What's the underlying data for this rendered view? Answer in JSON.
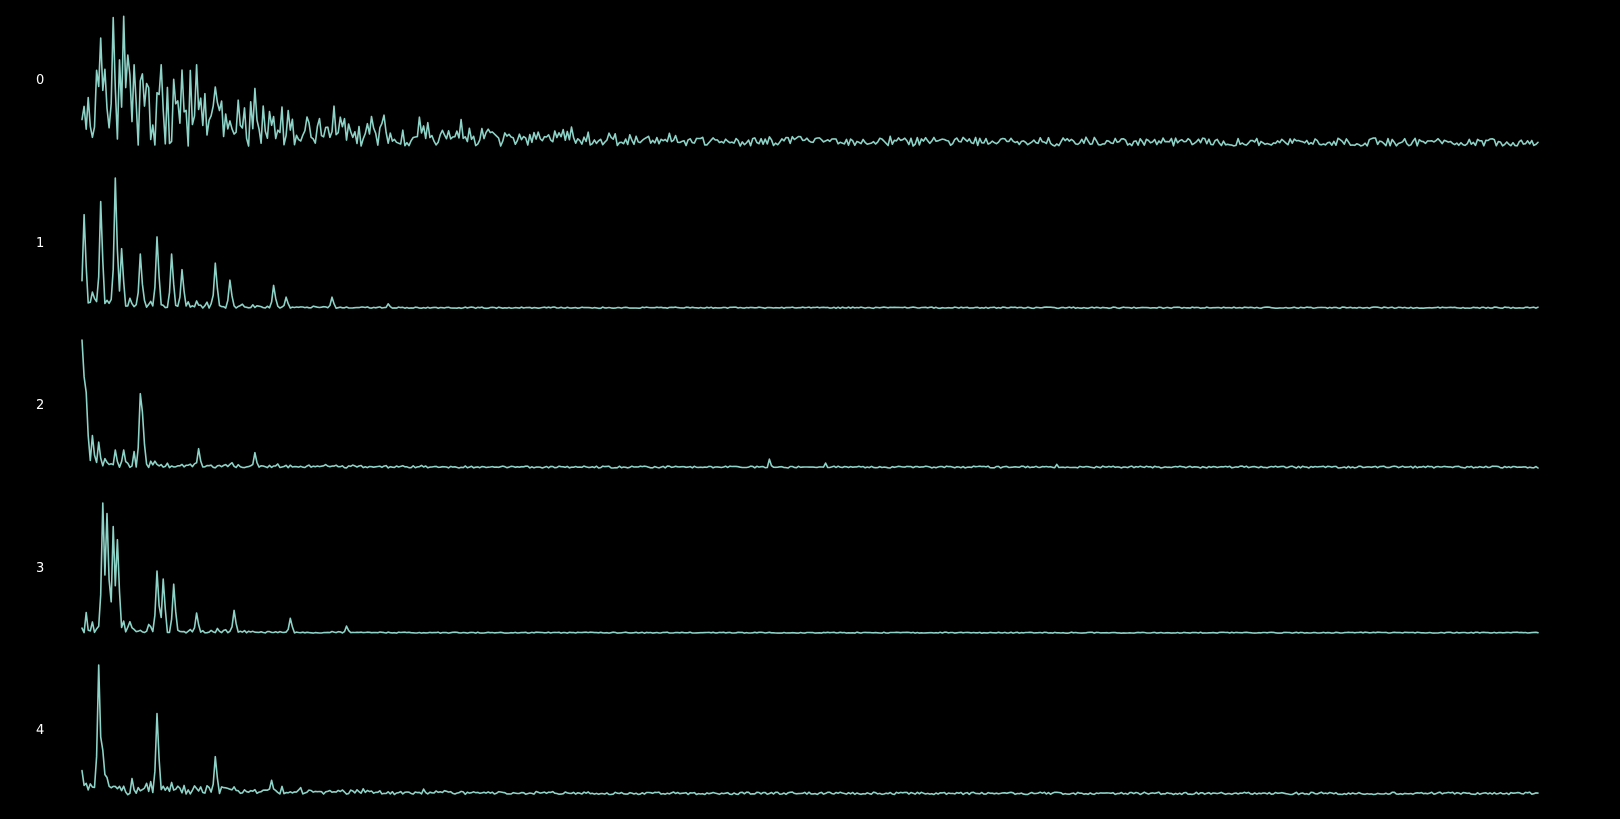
{
  "chart_data": {
    "type": "line",
    "title": "",
    "xlabel": "",
    "ylabel": "",
    "axes_visible": false,
    "grid": false,
    "legend": "none",
    "line_color": "#8dd3c7",
    "background_color": "#000000",
    "label_color": "#ffffff",
    "panels": [
      {
        "label": "0",
        "ylim": [
          0,
          1
        ],
        "noise_floor": 0.03,
        "noise_amplitude": 0.05,
        "envelope": {
          "amplitude": 0.5,
          "decay": 0.14
        },
        "peaks": [
          {
            "x": 0.013,
            "y": 0.58
          },
          {
            "x": 0.022,
            "y": 0.98
          },
          {
            "x": 0.029,
            "y": 0.99
          },
          {
            "x": 0.036,
            "y": 0.62
          },
          {
            "x": 0.041,
            "y": 0.55
          },
          {
            "x": 0.054,
            "y": 0.62
          },
          {
            "x": 0.068,
            "y": 0.58
          },
          {
            "x": 0.078,
            "y": 0.62
          },
          {
            "x": 0.091,
            "y": 0.45
          },
          {
            "x": 0.107,
            "y": 0.35
          },
          {
            "x": 0.119,
            "y": 0.44
          },
          {
            "x": 0.142,
            "y": 0.27
          },
          {
            "x": 0.232,
            "y": 0.22
          },
          {
            "x": 0.248,
            "y": 0.12
          },
          {
            "x": 0.29,
            "y": 0.1
          }
        ]
      },
      {
        "label": "1",
        "ylim": [
          0,
          1
        ],
        "noise_floor": 0.01,
        "noise_amplitude": 0.008,
        "envelope": {
          "amplitude": 0.14,
          "decay": 0.05
        },
        "peaks": [
          {
            "x": 0.001,
            "y": 0.72
          },
          {
            "x": 0.013,
            "y": 0.82
          },
          {
            "x": 0.023,
            "y": 1.0
          },
          {
            "x": 0.027,
            "y": 0.46
          },
          {
            "x": 0.04,
            "y": 0.42
          },
          {
            "x": 0.052,
            "y": 0.55
          },
          {
            "x": 0.062,
            "y": 0.42
          },
          {
            "x": 0.069,
            "y": 0.3
          },
          {
            "x": 0.091,
            "y": 0.35
          },
          {
            "x": 0.101,
            "y": 0.22
          },
          {
            "x": 0.131,
            "y": 0.18
          },
          {
            "x": 0.14,
            "y": 0.09
          },
          {
            "x": 0.171,
            "y": 0.09
          },
          {
            "x": 0.211,
            "y": 0.04
          }
        ]
      },
      {
        "label": "2",
        "ylim": [
          0,
          1
        ],
        "noise_floor": 0.03,
        "noise_amplitude": 0.012,
        "envelope": {
          "amplitude": 0.09,
          "decay": 0.07
        },
        "peaks": [
          {
            "x": 0.0,
            "y": 1.0
          },
          {
            "x": 0.002,
            "y": 0.72
          },
          {
            "x": 0.003,
            "y": 0.6
          },
          {
            "x": 0.007,
            "y": 0.27
          },
          {
            "x": 0.012,
            "y": 0.22
          },
          {
            "x": 0.023,
            "y": 0.16
          },
          {
            "x": 0.029,
            "y": 0.16
          },
          {
            "x": 0.04,
            "y": 0.59
          },
          {
            "x": 0.041,
            "y": 0.45
          },
          {
            "x": 0.042,
            "y": 0.42
          },
          {
            "x": 0.08,
            "y": 0.17
          },
          {
            "x": 0.119,
            "y": 0.14
          },
          {
            "x": 0.472,
            "y": 0.09
          },
          {
            "x": 0.511,
            "y": 0.06
          },
          {
            "x": 0.669,
            "y": 0.05
          }
        ]
      },
      {
        "label": "3",
        "ylim": [
          0,
          1
        ],
        "noise_floor": 0.01,
        "noise_amplitude": 0.006,
        "envelope": {
          "amplitude": 0.1,
          "decay": 0.05
        },
        "peaks": [
          {
            "x": 0.014,
            "y": 1.0
          },
          {
            "x": 0.017,
            "y": 0.92
          },
          {
            "x": 0.021,
            "y": 0.82
          },
          {
            "x": 0.025,
            "y": 0.72
          },
          {
            "x": 0.051,
            "y": 0.48
          },
          {
            "x": 0.056,
            "y": 0.42
          },
          {
            "x": 0.063,
            "y": 0.38
          },
          {
            "x": 0.078,
            "y": 0.16
          },
          {
            "x": 0.104,
            "y": 0.18
          },
          {
            "x": 0.143,
            "y": 0.12
          },
          {
            "x": 0.182,
            "y": 0.06
          }
        ]
      },
      {
        "label": "4",
        "ylim": [
          0,
          1
        ],
        "noise_floor": 0.02,
        "noise_amplitude": 0.015,
        "envelope": {
          "amplitude": 0.12,
          "decay": 0.1
        },
        "peaks": [
          {
            "x": 0.012,
            "y": 1.0
          },
          {
            "x": 0.014,
            "y": 0.35
          },
          {
            "x": 0.051,
            "y": 0.63
          },
          {
            "x": 0.052,
            "y": 0.3
          },
          {
            "x": 0.091,
            "y": 0.3
          },
          {
            "x": 0.13,
            "y": 0.12
          }
        ]
      }
    ]
  }
}
